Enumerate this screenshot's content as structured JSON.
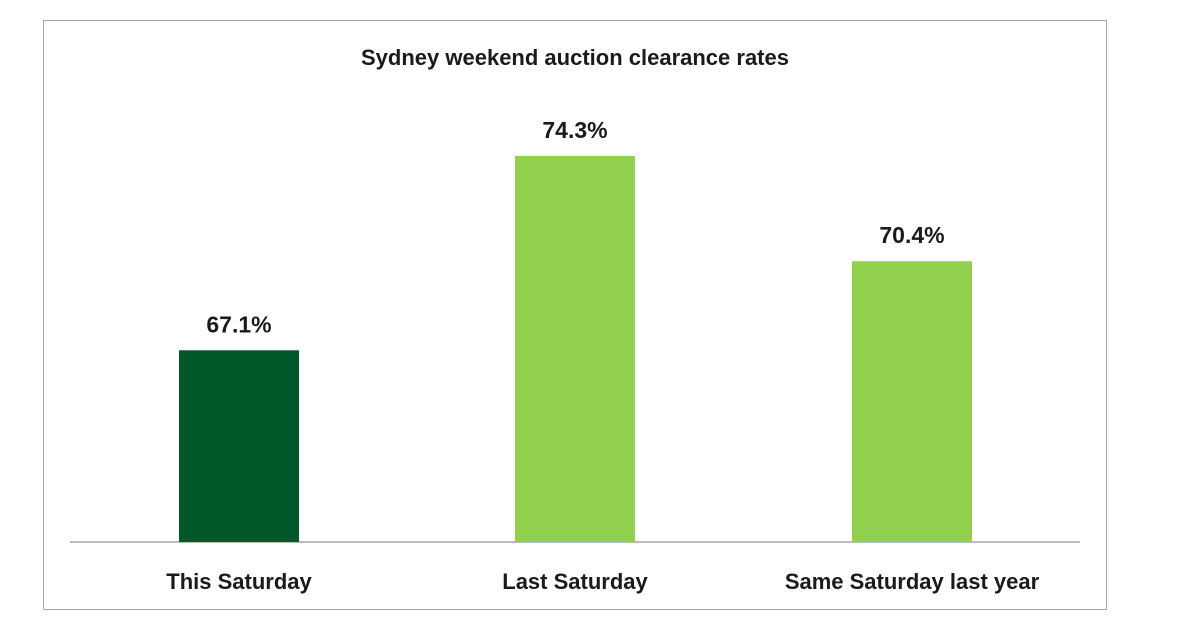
{
  "chart_data": {
    "type": "bar",
    "title": "Sydney weekend auction clearance rates",
    "categories": [
      "This Saturday",
      "Last Saturday",
      "Same Saturday last year"
    ],
    "values": [
      67.1,
      74.3,
      70.4
    ],
    "data_labels": [
      "67.1%",
      "74.3%",
      "70.4%"
    ],
    "bar_colors": [
      "#00582a",
      "#92d050",
      "#92d050"
    ],
    "ylim": [
      60,
      76
    ],
    "grid": false,
    "legend": "none",
    "xlabel": "",
    "ylabel": ""
  }
}
